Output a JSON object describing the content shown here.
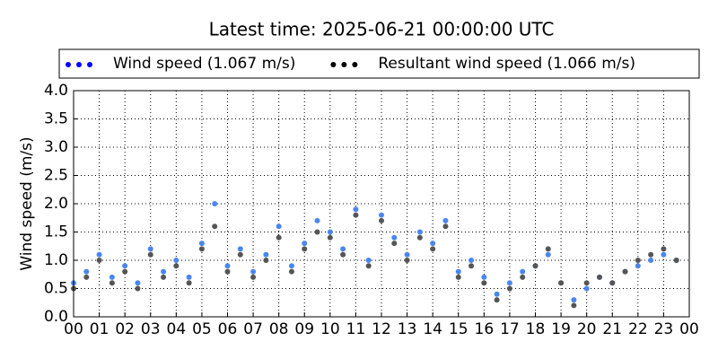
{
  "chart_data": {
    "type": "scatter",
    "title": "Latest time: 2025-06-21 00:00:00 UTC",
    "ylabel": "Wind speed (m/s)",
    "x": [
      0,
      0.5,
      1,
      1.5,
      2,
      2.5,
      3,
      3.5,
      4,
      4.5,
      5,
      5.5,
      6,
      6.5,
      7,
      7.5,
      8,
      8.5,
      9,
      9.5,
      10,
      10.5,
      11,
      11.5,
      12,
      12.5,
      13,
      13.5,
      14,
      14.5,
      15,
      15.5,
      16,
      16.5,
      17,
      17.5,
      18,
      18.5,
      19,
      19.5,
      20,
      20.5,
      21,
      21.5,
      22,
      22.5,
      23,
      23.5
    ],
    "series": [
      {
        "name": "Wind speed (1.067 m/s)",
        "color": "#4a86f0",
        "legend_color": "#0000ff",
        "values": [
          0.6,
          0.8,
          1.1,
          0.7,
          0.9,
          0.6,
          1.2,
          0.8,
          1.0,
          0.7,
          1.3,
          2.0,
          0.9,
          1.2,
          0.8,
          1.1,
          1.6,
          0.9,
          1.3,
          1.7,
          1.5,
          1.2,
          1.9,
          1.0,
          1.8,
          1.4,
          1.1,
          1.5,
          1.3,
          1.7,
          0.8,
          1.0,
          0.7,
          0.4,
          0.6,
          0.8,
          0.9,
          1.1,
          0.6,
          0.3,
          0.5,
          0.7,
          0.6,
          0.8,
          0.9,
          1.0,
          1.1,
          1.0
        ]
      },
      {
        "name": "Resultant wind speed (1.066 m/s)",
        "color": "#555555",
        "legend_color": "#000000",
        "values": [
          0.5,
          0.7,
          1.0,
          0.6,
          0.8,
          0.5,
          1.1,
          0.7,
          0.9,
          0.6,
          1.2,
          1.6,
          0.8,
          1.1,
          0.7,
          1.0,
          1.4,
          0.8,
          1.2,
          1.5,
          1.4,
          1.1,
          1.8,
          0.9,
          1.7,
          1.3,
          1.0,
          1.4,
          1.2,
          1.6,
          0.7,
          0.9,
          0.6,
          0.3,
          0.5,
          0.7,
          0.9,
          1.2,
          0.6,
          0.2,
          0.6,
          0.7,
          0.6,
          0.8,
          1.0,
          1.1,
          1.2,
          1.0
        ]
      }
    ],
    "xlim": [
      0,
      24
    ],
    "xticks": [
      {
        "value": 0,
        "label": "00"
      },
      {
        "value": 1,
        "label": "01"
      },
      {
        "value": 2,
        "label": "02"
      },
      {
        "value": 3,
        "label": "03"
      },
      {
        "value": 4,
        "label": "04"
      },
      {
        "value": 5,
        "label": "05"
      },
      {
        "value": 6,
        "label": "06"
      },
      {
        "value": 7,
        "label": "07"
      },
      {
        "value": 8,
        "label": "08"
      },
      {
        "value": 9,
        "label": "09"
      },
      {
        "value": 10,
        "label": "10"
      },
      {
        "value": 11,
        "label": "11"
      },
      {
        "value": 12,
        "label": "12"
      },
      {
        "value": 13,
        "label": "13"
      },
      {
        "value": 14,
        "label": "14"
      },
      {
        "value": 15,
        "label": "15"
      },
      {
        "value": 16,
        "label": "16"
      },
      {
        "value": 17,
        "label": "17"
      },
      {
        "value": 18,
        "label": "18"
      },
      {
        "value": 19,
        "label": "19"
      },
      {
        "value": 20,
        "label": "20"
      },
      {
        "value": 21,
        "label": "21"
      },
      {
        "value": 22,
        "label": "22"
      },
      {
        "value": 23,
        "label": "23"
      },
      {
        "value": 24,
        "label": "00"
      }
    ],
    "ylim": [
      0,
      4
    ],
    "yticks": [
      {
        "value": 0,
        "label": "0.0"
      },
      0.5,
      {
        "value": 1,
        "label": "1.0"
      },
      1.5,
      {
        "value": 2,
        "label": "2.0"
      },
      2.5,
      {
        "value": 3,
        "label": "3.0"
      },
      3.5,
      {
        "value": 4,
        "label": "4.0"
      }
    ],
    "grid": true,
    "legend": "top"
  }
}
